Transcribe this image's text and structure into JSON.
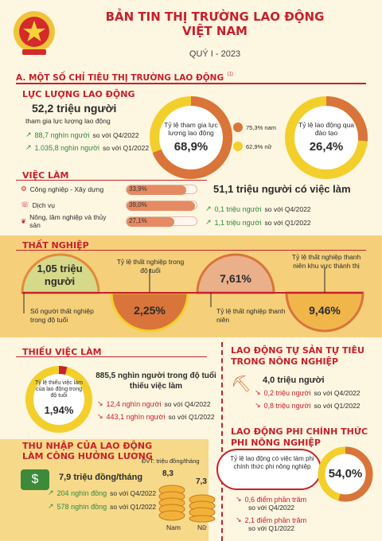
{
  "header": {
    "title_line1": "BẢN TIN THỊ TRƯỜNG LAO ĐỘNG",
    "title_line2": "VIỆT NAM",
    "subtitle": "QUÝ I - 2023",
    "emblem_icon": "national-emblem-icon"
  },
  "section_a": {
    "title": "A. MỘT SỐ CHỈ TIÊU THỊ TRƯỜNG LAO ĐỘNG",
    "note": "(1)"
  },
  "labor_force": {
    "title": "LỰC LƯỢNG LAO ĐỘNG",
    "value": "52,2 triệu người",
    "desc": "tham gia lực lượng lao động",
    "change1_value": "88,7 nghìn người",
    "change1_text": "so với Q4/2022",
    "change2_value": "1.035,8 nghìn người",
    "change2_text": "so với Q1/2022",
    "participation_label": "Tỷ lệ tham gia lực lượng lao động",
    "participation_value": "68,9%",
    "participation_pct": 68.9,
    "male_label": "75,3% nam",
    "female_label": "62,9% nữ",
    "trained_label": "Tỷ lệ lao động qua đào tạo",
    "trained_value": "26,4%",
    "trained_pct": 26.4
  },
  "employment": {
    "title": "VIỆC LÀM",
    "sectors": [
      {
        "label": "Công nghiệp - Xây dựng",
        "value": "33,9%",
        "pct": 33.9,
        "icon": "factory-icon"
      },
      {
        "label": "Dịch vụ",
        "value": "39,0%",
        "pct": 39.0,
        "icon": "service-icon"
      },
      {
        "label": "Nông, lâm nghiệp và thủy sản",
        "value": "27,1%",
        "pct": 27.1,
        "icon": "farming-icon"
      }
    ],
    "total": "51,1 triệu người có việc làm",
    "change1_value": "0,1  triệu người",
    "change1_text": "so với Q4/2022",
    "change2_value": "1,1  triệu người",
    "change2_text": "so với Q1/2022"
  },
  "unemployment": {
    "title": "THẤT NGHIỆP",
    "count_value": "1,05 triệu người",
    "count_label": "Số người thất nghiệp trong độ tuổi",
    "rate_label": "Tỷ lệ thất nghiệp trong độ tuổi",
    "rate_value": "2,25%",
    "youth_value": "7,61%",
    "youth_label": "Tỷ lệ thất nghiệp thanh niên",
    "urban_label": "Tỷ lệ thất nghiệp thanh niên khu vực thành thị",
    "urban_value": "9,46%"
  },
  "underemployment": {
    "title": "THIẾU VIỆC LÀM",
    "rate_label": "Tỷ lệ thiếu việc làm của lao động trong độ tuổi",
    "rate_value": "1,94%",
    "rate_pct": 1.94,
    "count": "885,5 nghìn người trong độ tuổi thiếu việc làm",
    "change1_value": "12,4 nghìn người",
    "change1_text": "so với Q4/2022",
    "change2_value": "443,1 nghìn người",
    "change2_text": "so với Q1/2022"
  },
  "self_employed": {
    "title": "LAO ĐỘNG TỰ SẢN TỰ TIÊU TRONG NÔNG NGHIỆP",
    "value": "4,0 triệu người",
    "change1_value": "0,2 triệu người",
    "change1_text": "so với Q4/2022",
    "change2_value": "0,8 triệu người",
    "change2_text": "so với Q1/2022",
    "icon": "farmer-icon"
  },
  "income": {
    "title_line1": "THU NHẬP CỦA LAO ĐỘNG",
    "title_line2": "LÀM CÔNG HƯỞNG LƯƠNG",
    "unit": "ĐVT: triệu đồng/tháng",
    "value": "7,9 triệu đồng/tháng",
    "change1_value": "204 nghìn đồng",
    "change1_text": "so với Q4/2022",
    "change2_value": "578 nghìn đồng",
    "change2_text": "so với Q1/2022",
    "male_label": "Nam",
    "male_value": "8,3",
    "female_label": "Nữ",
    "female_value": "7,3",
    "money_icon": "money-icon",
    "coin_icon": "coin-stack-icon"
  },
  "informal": {
    "title_line1": "LAO ĐỘNG PHI CHÍNH THỨC",
    "title_line2": "PHI NÔNG NGHIỆP",
    "rate_label": "Tỷ lệ lao động có việc làm phi chính thức phi nông nghiệp",
    "rate_value": "54,0%",
    "rate_pct": 54.0,
    "change1_value": "0,6 điểm phần trăm",
    "change1_text": "so với Q4/2022",
    "change2_value": "2,1 điểm phần trăm",
    "change2_text": "so với Q1/2022"
  },
  "colors": {
    "red": "#c8202b",
    "orange": "#d9743a",
    "yellow": "#f3cf2c",
    "green": "#2d8a3a"
  }
}
